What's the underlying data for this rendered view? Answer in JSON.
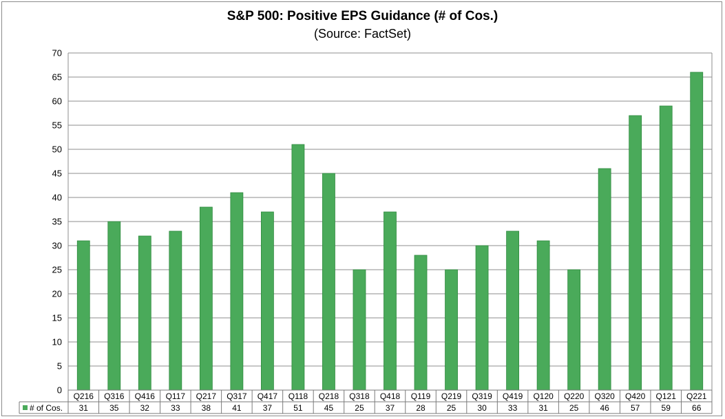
{
  "chart_data": {
    "type": "bar",
    "title": "S&P 500: Positive EPS Guidance (# of Cos.)",
    "subtitle": "(Source: FactSet)",
    "xlabel": "",
    "ylabel": "",
    "ylim": [
      0,
      70
    ],
    "ytick_step": 5,
    "grid": true,
    "legend": "data-table-left",
    "categories": [
      "Q216",
      "Q316",
      "Q416",
      "Q117",
      "Q217",
      "Q317",
      "Q417",
      "Q118",
      "Q218",
      "Q318",
      "Q418",
      "Q119",
      "Q219",
      "Q319",
      "Q419",
      "Q120",
      "Q220",
      "Q320",
      "Q420",
      "Q121",
      "Q221"
    ],
    "series": [
      {
        "name": "# of Cos.",
        "color": "#4aaa5a",
        "values": [
          31,
          35,
          32,
          33,
          38,
          41,
          37,
          51,
          45,
          25,
          37,
          28,
          25,
          30,
          33,
          31,
          25,
          46,
          57,
          59,
          66
        ]
      }
    ]
  }
}
